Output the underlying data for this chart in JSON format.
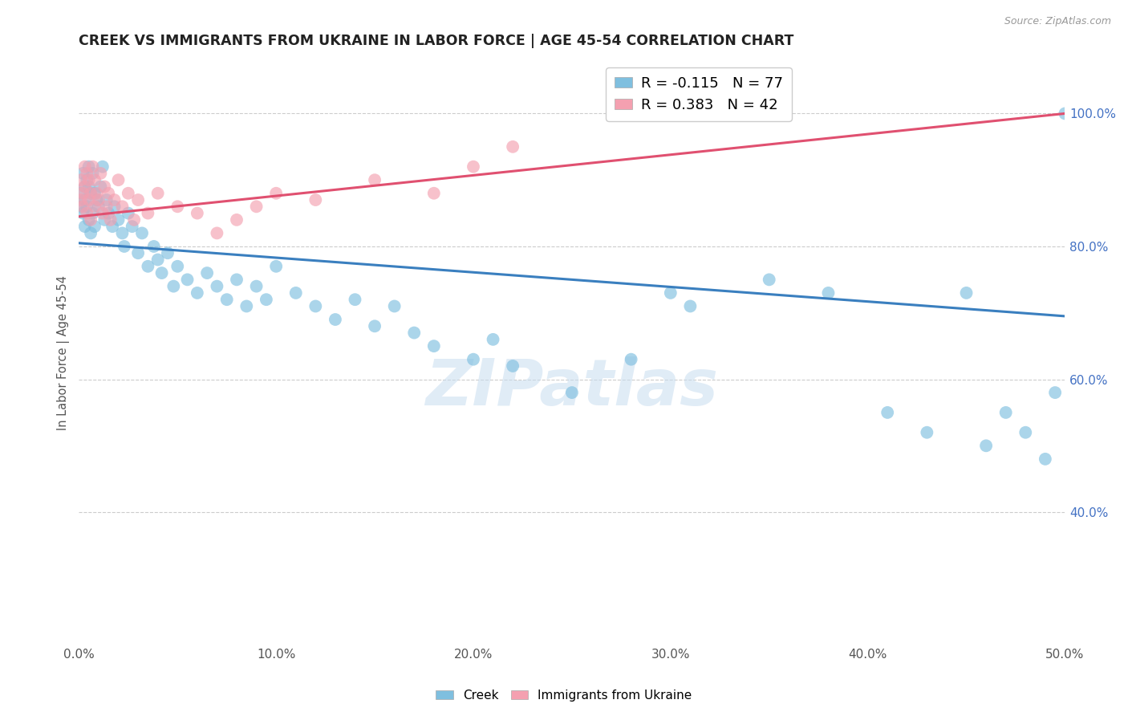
{
  "title": "CREEK VS IMMIGRANTS FROM UKRAINE IN LABOR FORCE | AGE 45-54 CORRELATION CHART",
  "source": "Source: ZipAtlas.com",
  "ylabel": "In Labor Force | Age 45-54",
  "xmin": 0.0,
  "xmax": 0.5,
  "ymin": 0.2,
  "ymax": 1.08,
  "xtick_labels": [
    "0.0%",
    "10.0%",
    "20.0%",
    "30.0%",
    "40.0%",
    "50.0%"
  ],
  "xtick_vals": [
    0.0,
    0.1,
    0.2,
    0.3,
    0.4,
    0.5
  ],
  "ytick_labels": [
    "40.0%",
    "60.0%",
    "80.0%",
    "100.0%"
  ],
  "ytick_vals": [
    0.4,
    0.6,
    0.8,
    1.0
  ],
  "creek_R": -0.115,
  "creek_N": 77,
  "ukraine_R": 0.383,
  "ukraine_N": 42,
  "creek_color": "#7fbfdf",
  "ukraine_color": "#f4a0b0",
  "creek_line_color": "#3a7fbf",
  "ukraine_line_color": "#e05070",
  "legend_creek_label": "Creek",
  "legend_ukraine_label": "Immigrants from Ukraine",
  "background_color": "#ffffff",
  "grid_color": "#cccccc",
  "watermark": "ZIPatlas",
  "creek_x": [
    0.001,
    0.001,
    0.002,
    0.002,
    0.003,
    0.003,
    0.003,
    0.004,
    0.004,
    0.005,
    0.005,
    0.005,
    0.006,
    0.006,
    0.007,
    0.007,
    0.008,
    0.008,
    0.009,
    0.01,
    0.011,
    0.012,
    0.013,
    0.014,
    0.015,
    0.017,
    0.018,
    0.02,
    0.022,
    0.023,
    0.025,
    0.027,
    0.03,
    0.032,
    0.035,
    0.038,
    0.04,
    0.042,
    0.045,
    0.048,
    0.05,
    0.055,
    0.06,
    0.065,
    0.07,
    0.075,
    0.08,
    0.085,
    0.09,
    0.095,
    0.1,
    0.11,
    0.12,
    0.13,
    0.14,
    0.15,
    0.16,
    0.17,
    0.18,
    0.2,
    0.21,
    0.22,
    0.25,
    0.28,
    0.3,
    0.31,
    0.35,
    0.38,
    0.41,
    0.43,
    0.45,
    0.46,
    0.47,
    0.48,
    0.49,
    0.495,
    0.5
  ],
  "creek_y": [
    0.88,
    0.86,
    0.91,
    0.85,
    0.89,
    0.87,
    0.83,
    0.9,
    0.86,
    0.89,
    0.92,
    0.84,
    0.88,
    0.82,
    0.91,
    0.85,
    0.88,
    0.83,
    0.87,
    0.86,
    0.89,
    0.92,
    0.84,
    0.87,
    0.85,
    0.83,
    0.86,
    0.84,
    0.82,
    0.8,
    0.85,
    0.83,
    0.79,
    0.82,
    0.77,
    0.8,
    0.78,
    0.76,
    0.79,
    0.74,
    0.77,
    0.75,
    0.73,
    0.76,
    0.74,
    0.72,
    0.75,
    0.71,
    0.74,
    0.72,
    0.77,
    0.73,
    0.71,
    0.69,
    0.72,
    0.68,
    0.71,
    0.67,
    0.65,
    0.63,
    0.66,
    0.62,
    0.58,
    0.63,
    0.73,
    0.71,
    0.75,
    0.73,
    0.55,
    0.52,
    0.73,
    0.5,
    0.55,
    0.52,
    0.48,
    0.58,
    1.0
  ],
  "ukraine_x": [
    0.001,
    0.001,
    0.002,
    0.002,
    0.003,
    0.003,
    0.004,
    0.004,
    0.005,
    0.005,
    0.006,
    0.006,
    0.007,
    0.008,
    0.008,
    0.009,
    0.01,
    0.011,
    0.012,
    0.013,
    0.014,
    0.015,
    0.016,
    0.018,
    0.02,
    0.022,
    0.025,
    0.028,
    0.03,
    0.035,
    0.04,
    0.05,
    0.06,
    0.07,
    0.08,
    0.09,
    0.1,
    0.12,
    0.15,
    0.18,
    0.2,
    0.22
  ],
  "ukraine_y": [
    0.87,
    0.9,
    0.88,
    0.86,
    0.92,
    0.89,
    0.91,
    0.85,
    0.9,
    0.87,
    0.88,
    0.84,
    0.92,
    0.86,
    0.9,
    0.88,
    0.87,
    0.91,
    0.85,
    0.89,
    0.86,
    0.88,
    0.84,
    0.87,
    0.9,
    0.86,
    0.88,
    0.84,
    0.87,
    0.85,
    0.88,
    0.86,
    0.85,
    0.82,
    0.84,
    0.86,
    0.88,
    0.87,
    0.9,
    0.88,
    0.92,
    0.95
  ],
  "creek_trend_x0": 0.0,
  "creek_trend_y0": 0.805,
  "creek_trend_x1": 0.5,
  "creek_trend_y1": 0.695,
  "ukraine_trend_x0": 0.0,
  "ukraine_trend_y0": 0.845,
  "ukraine_trend_x1": 0.5,
  "ukraine_trend_y1": 1.0
}
